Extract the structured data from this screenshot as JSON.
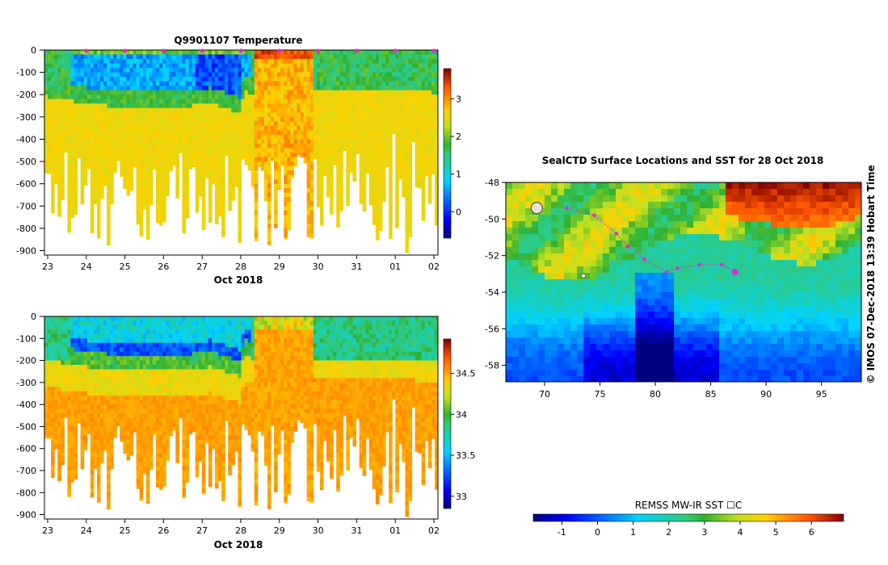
{
  "chart_data": [
    {
      "type": "heatmap",
      "id": "temperature-section",
      "title": "Q9901107  Temperature",
      "xlabel": "Oct 2018",
      "ylabel": "",
      "x_ticks": [
        "23",
        "24",
        "25",
        "26",
        "27",
        "28",
        "29",
        "30",
        "31",
        "01",
        "02"
      ],
      "y_ticks": [
        0,
        -100,
        -200,
        -300,
        -400,
        -500,
        -600,
        -700,
        -800,
        -900
      ],
      "ylim": [
        -920,
        0
      ],
      "colorbar": {
        "ticks": [
          0,
          1,
          2,
          3
        ],
        "range": [
          -0.7,
          3.8
        ]
      },
      "surface_markers": [
        "24",
        "25",
        "26",
        "27",
        "28",
        "29",
        "30",
        "31",
        "01",
        "02"
      ]
    },
    {
      "type": "heatmap",
      "id": "salinity-section",
      "title": "",
      "xlabel": "Oct 2018",
      "ylabel": "",
      "x_ticks": [
        "23",
        "24",
        "25",
        "26",
        "27",
        "28",
        "29",
        "30",
        "31",
        "01",
        "02"
      ],
      "y_ticks": [
        0,
        -100,
        -200,
        -300,
        -400,
        -500,
        -600,
        -700,
        -800,
        -900
      ],
      "ylim": [
        -920,
        0
      ],
      "colorbar": {
        "ticks": [
          33,
          33.5,
          34,
          34.5
        ],
        "range": [
          32.85,
          34.92
        ]
      }
    },
    {
      "type": "heatmap",
      "id": "sst-map",
      "title": "SealCTD Surface Locations and SST for 28 Oct 2018",
      "xlabel": "",
      "ylabel": "",
      "x_ticks": [
        70,
        75,
        80,
        85,
        90,
        95
      ],
      "y_ticks": [
        -48,
        -50,
        -52,
        -54,
        -56,
        -58
      ],
      "xlim": [
        66.5,
        98.6
      ],
      "ylim": [
        -58.9,
        -48
      ],
      "track": [
        [
          72,
          -49.4
        ],
        [
          74.5,
          -49.8
        ],
        [
          76.5,
          -50.8
        ],
        [
          77.5,
          -51.5
        ],
        [
          79,
          -52.2
        ],
        [
          81,
          -52.9
        ],
        [
          82,
          -52.7
        ],
        [
          84,
          -52.5
        ],
        [
          86,
          -52.5
        ],
        [
          87.2,
          -52.9
        ]
      ],
      "colorbar": {
        "label": "REMSS MW-IR SST ☐C",
        "ticks": [
          -1,
          0,
          1,
          2,
          3,
          4,
          5,
          6
        ],
        "range": [
          -1.8,
          6.9
        ]
      }
    }
  ],
  "credit": "©  IMOS 07-Dec-2018 13:39 Hobart Time"
}
